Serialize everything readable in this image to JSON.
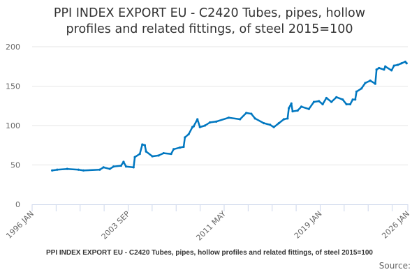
{
  "chart_data": {
    "type": "line",
    "title_line1": "PPI INDEX EXPORT EU - C2420 Tubes, pipes, hollow",
    "title_line2": "profiles and related fittings, of steel 2015=100",
    "caption": "PPI INDEX EXPORT EU - C2420 Tubes, pipes, hollow profiles and related fittings, of steel 2015=100",
    "source_label": "Source:",
    "xlabel": "",
    "ylabel": "",
    "xlim": [
      1996.0,
      2026.0
    ],
    "ylim": [
      0,
      200
    ],
    "y_ticks": [
      0,
      50,
      100,
      150,
      200
    ],
    "x_tick_labels": [
      {
        "label": "1996 JAN",
        "x": 1996.0
      },
      {
        "label": "2003 SEP",
        "x": 2003.67
      },
      {
        "label": "2011 MAY",
        "x": 2011.33
      },
      {
        "label": "2019 JAN",
        "x": 2019.0
      },
      {
        "label": "2026 JAN",
        "x": 2026.0
      }
    ],
    "grid": true,
    "color": "#0077c0",
    "series": [
      {
        "name": "PPI INDEX EXPORT EU - C2420",
        "x": [
          1997.6,
          1998.0,
          1998.8,
          1999.7,
          2000.1,
          2001.4,
          2001.7,
          2002.2,
          2002.5,
          2003.1,
          2003.3,
          2003.5,
          2004.1,
          2004.2,
          2004.6,
          2004.8,
          2005.0,
          2005.1,
          2005.6,
          2006.1,
          2006.5,
          2007.1,
          2007.3,
          2007.8,
          2008.1,
          2008.2,
          2008.5,
          2008.8,
          2008.9,
          2009.2,
          2009.4,
          2009.8,
          2010.2,
          2010.7,
          2011.7,
          2012.6,
          2013.1,
          2013.5,
          2013.8,
          2014.5,
          2015.0,
          2015.3,
          2015.7,
          2016.1,
          2016.4,
          2016.5,
          2016.7,
          2016.8,
          2017.2,
          2017.5,
          2018.1,
          2018.5,
          2018.9,
          2019.2,
          2019.5,
          2019.9,
          2020.3,
          2020.8,
          2021.1,
          2021.4,
          2021.6,
          2021.8,
          2021.9,
          2022.3,
          2022.6,
          2023.0,
          2023.4,
          2023.5,
          2023.7,
          2024.1,
          2024.2,
          2024.7,
          2024.9,
          2025.2,
          2025.5,
          2025.8,
          2025.9
        ],
        "values": [
          43,
          44,
          45,
          44,
          43,
          44,
          47,
          45,
          48,
          49,
          54,
          48,
          47,
          60,
          64,
          76,
          75,
          67,
          61,
          62,
          65,
          64,
          70,
          72,
          73,
          85,
          89,
          98,
          99,
          108,
          98,
          100,
          104,
          105,
          110,
          108,
          116,
          115,
          109,
          103,
          101,
          98,
          103,
          108,
          109,
          122,
          128,
          118,
          119,
          124,
          121,
          130,
          131,
          127,
          135,
          130,
          136,
          133,
          127,
          127,
          133,
          133,
          143,
          147,
          154,
          157,
          153,
          171,
          173,
          171,
          175,
          170,
          176,
          177,
          179,
          181,
          179
        ]
      }
    ]
  }
}
